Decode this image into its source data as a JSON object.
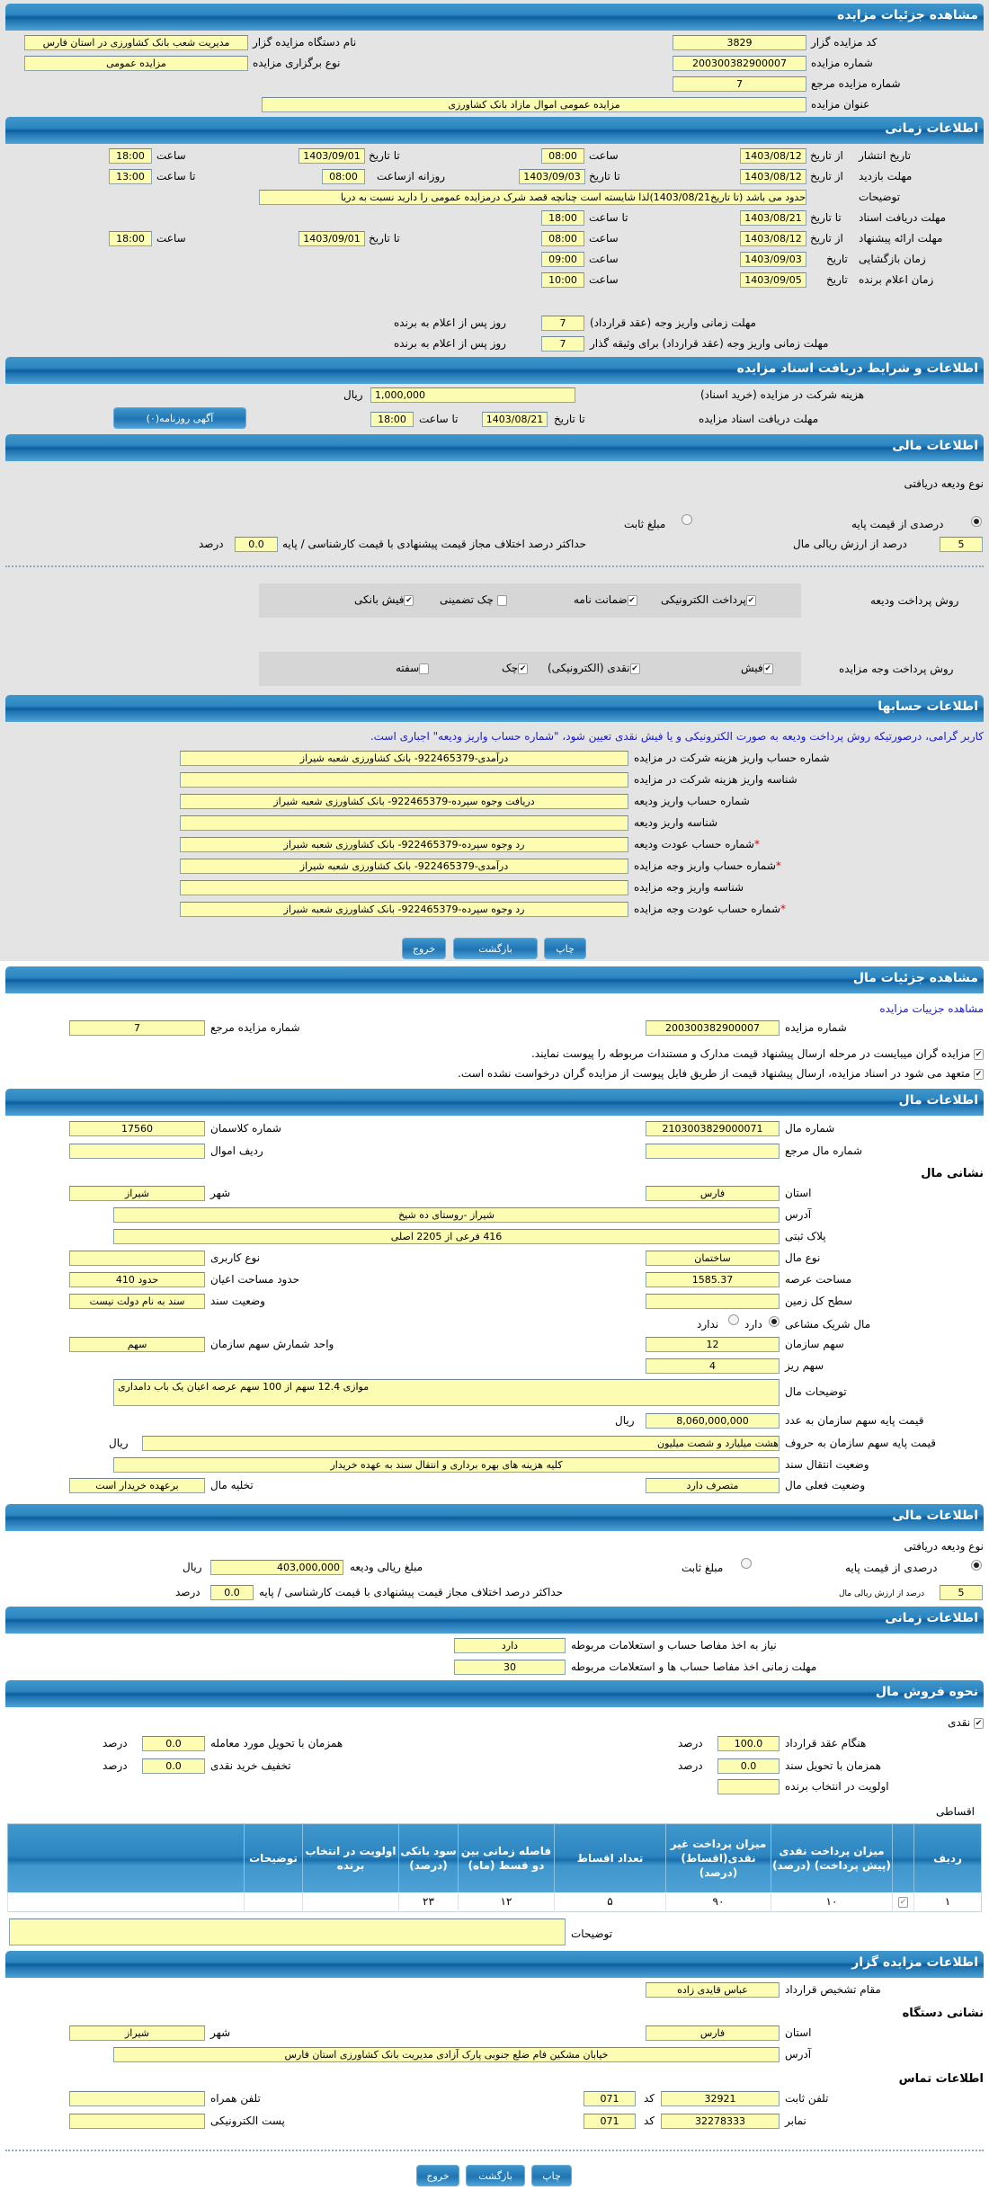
{
  "s1": {
    "title": "مشاهده جزئیات مزایده",
    "code_label": "کد مزایده گزار",
    "code": "3829",
    "org_label": "نام دستگاه مزایده گزار",
    "org": "مدیریت شعب بانک کشاورزی در استان فارس",
    "num_label": "شماره مزایده",
    "num": "200300382900007",
    "type_label": "نوع برگزاری مزایده",
    "type": "مزایده عمومی",
    "ref_label": "شماره مزایده مرجع",
    "ref": "7",
    "subject_label": "عنوان مزایده",
    "subject": "مزایده عمومی اموال مازاد بانک کشاورزی"
  },
  "s2": {
    "title": "اطلاعات زمانی",
    "from_date": "از تاریخ",
    "to_date": "تا تاریخ",
    "date": "تاریخ",
    "hour": "ساعت",
    "to_hour": "تا ساعت",
    "daily_from": "روزانه ازساعت",
    "publish": {
      "label": "تاریخ انتشار",
      "from": "1403/08/12",
      "from_time": "08:00",
      "to": "1403/09/01",
      "to_time": "18:00"
    },
    "visit": {
      "label": "مهلت بازدید",
      "from": "1403/08/12",
      "to": "1403/09/03",
      "daily_from": "08:00",
      "to_time": "13:00"
    },
    "notes_label": "توضیحات",
    "notes": "حدود می باشد (تا تاریخ1403/08/21)لذا شایسته است چنانچه قصد شرک درمزایده عمومی را دارید نسبت به دریا",
    "docs": {
      "label": "مهلت دریافت اسناد",
      "to": "1403/08/21",
      "to_time": "18:00"
    },
    "offer": {
      "label": "مهلت ارائه پیشنهاد",
      "from": "1403/08/12",
      "from_time": "08:00",
      "to": "1403/09/01",
      "to_time": "18:00"
    },
    "opening": {
      "label": "زمان بازگشایی",
      "date": "1403/09/03",
      "time": "09:00"
    },
    "winner": {
      "label": "زمان اعلام برنده",
      "date": "1403/09/05",
      "time": "10:00"
    },
    "pay1_label": "مهلت زمانی واریز وجه (عقد قرارداد)",
    "pay1": "7",
    "pay2_label": "مهلت زمانی واریز وجه (عقد قرارداد) برای وثیقه گذار",
    "pay2": "7",
    "days_suffix": "روز پس از اعلام به برنده"
  },
  "s3": {
    "title": "اطلاعات و شرایط دریافت اسناد مزایده",
    "fee_label": "هزینه شرکت در مزایده (خرید اسناد)",
    "fee": "1,000,000",
    "rial": "ریال",
    "deadline_label": "مهلت دریافت اسناد مزایده",
    "to_date": "تا تاریخ",
    "date": "1403/08/21",
    "to_hour": "تا ساعت",
    "time": "18:00",
    "ad_button": "آگهی روزنامه(۰)"
  },
  "s4": {
    "title": "اطلاعات مالی",
    "deposit_type": "نوع ودیعه دریافتی",
    "percent_option": "درصدی از قیمت پایه",
    "fixed_option": "مبلغ ثابت",
    "percent": "5",
    "percent_suffix": "درصد از ارزش ریالی مال",
    "max_diff_label": "حداکثر درصد اختلاف مجاز قیمت پیشنهادی با قیمت کارشناسی / پایه",
    "max_diff": "0.0",
    "percent_unit": "درصد",
    "deposit_method_label": "روش پرداخت ودیعه",
    "deposit_methods": [
      {
        "label": "پرداخت الکترونیکی",
        "checked": true
      },
      {
        "label": "ضمانت نامه",
        "checked": true
      },
      {
        "label": "چک تضمینی",
        "checked": false
      },
      {
        "label": "فیش بانکی",
        "checked": true
      }
    ],
    "payment_method_label": "روش پرداخت وجه مزایده",
    "payment_methods": [
      {
        "label": "فیش",
        "checked": true
      },
      {
        "label": "نقدی (الکترونیکی)",
        "checked": true
      },
      {
        "label": "چک",
        "checked": true
      },
      {
        "label": "سفته",
        "checked": false
      }
    ]
  },
  "s5": {
    "title": "اطلاعات حسابها",
    "notice": "کاربر گرامی، درصورتیکه روش پرداخت ودیعه به صورت الکترونیکی و یا فیش نقدی تعیین شود، \"شماره حساب واریز ودیعه\" اجباری است.",
    "rows": [
      {
        "label": "شماره حساب واریز هزینه شرکت در مزایده",
        "value": "درآمدی-922465379- بانک کشاورزی شعبه شیراز",
        "req": false
      },
      {
        "label": "شناسه واریز هزینه شرکت در مزایده",
        "value": "",
        "req": false
      },
      {
        "label": "شماره حساب واریز ودیعه",
        "value": "دریافت وجوه سپرده-922465379- بانک کشاورزی شعبه شیراز",
        "req": false
      },
      {
        "label": "شناسه واریز ودیعه",
        "value": "",
        "req": false
      },
      {
        "label": "شماره حساب عودت ودیعه",
        "value": "رد وجوه سپرده-922465379- بانک کشاورزی شعبه شیراز",
        "req": true
      },
      {
        "label": "شماره حساب واریز وجه مزایده",
        "value": "درآمدی-922465379- بانک کشاورزی شعبه شیراز",
        "req": true
      },
      {
        "label": "شناسه واریز وجه مزایده",
        "value": "",
        "req": false
      },
      {
        "label": "شماره حساب عودت وجه مزایده",
        "value": "رد وجوه سپرده-922465379- بانک کشاورزی شعبه شیراز",
        "req": true
      }
    ],
    "required_mark": "*",
    "print": "چاپ",
    "back": "بازگشت",
    "exit": "خروج"
  },
  "s6": {
    "title": "مشاهده جزئیات مال",
    "link": "مشاهده جزییات مزایده",
    "num_label": "شماره مزایده",
    "num": "200300382900007",
    "ref_label": "شماره مزایده مرجع",
    "ref": "7",
    "note1": "مزایده گران میبایست در مرحله ارسال پیشنهاد قیمت مدارک و مستندات مربوطه را پیوست نمایند.",
    "note2": "متعهد می شود در اسناد مزایده، ارسال پیشنهاد قیمت از طریق فایل پیوست از مزایده گران درخواست نشده است."
  },
  "s7": {
    "title": "اطلاعات مال",
    "item_no_label": "شماره مال",
    "item_no": "2103003829000071",
    "class_label": "شماره کلاسمان",
    "class": "17560",
    "ref_item_label": "شماره مال مرجع",
    "ref_item": "",
    "row_label": "ردیف اموال",
    "row": "",
    "address_heading": "نشانی مال",
    "province_label": "استان",
    "province": "فارس",
    "city_label": "شهر",
    "city": "شیراز",
    "address_label": "آدرس",
    "address": "شیراز -روستای ده شیخ",
    "plate_label": "پلاک ثبتی",
    "plate": "416 فرعی از 2205 اصلی",
    "kind_label": "نوع مال",
    "kind": "ساختمان",
    "usage_label": "نوع کاربری",
    "usage": "",
    "land_label": "مساحت عرصه",
    "land": "1585.37",
    "building_label": "حدود مساحت اعیان",
    "building": "حدود 410",
    "total_label": "سطح کل زمین",
    "total": "",
    "deed_label": "وضعیت سند",
    "deed": "سند به نام دولت نیست",
    "shared_label": "مال شریک مشاعی",
    "has": "دارد",
    "has_not": "ندارد",
    "share_label": "سهم سازمان",
    "share": "12",
    "unit_label": "واحد شمارش سهم سازمان",
    "unit": "سهم",
    "sub_share_label": "سهم ریز",
    "sub_share": "4",
    "desc_label": "توضیحات مال",
    "desc": "موازی 12.4 سهم از 100 سهم عرصه اعیان یک باب دامداری",
    "price_num_label": "قیمت پایه سهم سازمان به عدد",
    "price_num": "8,060,000,000",
    "price_words_label": "قیمت پایه سهم سازمان به حروف",
    "price_words": "هشت میلیارد و شصت میلیون",
    "rial": "ریال",
    "transfer_label": "وضعیت انتقال سند",
    "transfer": "کلیه هزینه های بهره برداری و انتقال سند به عهده خریدار",
    "current_label": "وضعیت فعلی مال",
    "current": "متصرف دارد",
    "evac_label": "تخلیه مال",
    "evac": "برعهده خریدار است"
  },
  "s8": {
    "title": "اطلاعات مالی",
    "deposit_type": "نوع ودیعه دریافتی",
    "percent_option": "درصدی از قیمت پایه",
    "fixed_option": "مبلغ ثابت",
    "amount_label": "مبلغ ریالی ودیعه",
    "amount": "403,000,000",
    "rial": "ریال",
    "percent": "5",
    "percent_suffix": "درصد از ارزش ریالی مال",
    "max_diff_label": "حداکثر درصد اختلاف مجاز قیمت پیشنهادی با قیمت کارشناسی / پایه",
    "max_diff": "0.0",
    "percent_unit": "درصد"
  },
  "s9": {
    "title": "اطلاعات زمانی",
    "clearance_label": "نیاز به اخذ مفاصا حساب و استعلامات مربوطه",
    "clearance": "دارد",
    "clearance_time_label": "مهلت زمانی اخذ مفاصا حساب ها و استعلامات مربوطه",
    "clearance_time": "30"
  },
  "s10": {
    "title": "نحوه فروش مال",
    "cash_label": "نقدی",
    "percent_unit": "درصد",
    "contract_label": "هنگام عقد قرارداد",
    "contract": "100.0",
    "delivery_label": "همزمان با تحویل مورد معامله",
    "delivery": "0.0",
    "deed_label": "همزمان با تحویل سند",
    "deed": "0.0",
    "discount_label": "تخفیف خرید نقدی",
    "discount": "0.0",
    "priority_label": "اولویت در انتخاب برنده",
    "priority": "",
    "installment_label": "اقساطی",
    "table": {
      "headers": [
        "ردیف",
        "",
        "میزان پرداخت نقدی (پیش پرداخت) (درصد)",
        "میزان پرداخت غیر نقدی(اقساط) (درصد)",
        "تعداد اقساط",
        "فاصله زمانی بین دو قسط (ماه)",
        "سود بانکی (درصد)",
        "اولویت در انتخاب برنده",
        "توضیحات",
        ""
      ],
      "rows": [
        {
          "cells": [
            "۱",
            "",
            "۱۰",
            "۹۰",
            "۵",
            "۱۲",
            "۲۳",
            "",
            "",
            ""
          ],
          "checked": true
        }
      ]
    },
    "notes_label": "توضیحات",
    "notes": ""
  },
  "s11": {
    "title": "اطلاعات مزایده گزار",
    "authority_label": "مقام تشخیص قرارداد",
    "authority": "عباس قایدی زاده",
    "address_heading": "نشانی دستگاه",
    "province_label": "استان",
    "province": "فارس",
    "city_label": "شهر",
    "city": "شیراز",
    "address_label": "آدرس",
    "address": "خیابان مشکین فام ضلع جنوبی پارک آزادی مدیریت بانک کشاورزی استان فارس",
    "contact_heading": "اطلاعات تماس",
    "phone_label": "تلفن ثابت",
    "phone": "32921",
    "code_label": "کد",
    "phone_code": "071",
    "mobile_label": "تلفن همراه",
    "mobile": "",
    "fax_label": "نمابر",
    "fax": "32278333",
    "fax_code": "071",
    "email_label": "پست الکترونیکی",
    "email": "",
    "print": "چاپ",
    "back": "بازگشت",
    "exit": "خروج"
  },
  "colors": {
    "header": "#2d86c0",
    "input_bg": "#fcfcb2",
    "page_gray": "#e4e4e4",
    "notice": "#1a1ad0"
  }
}
